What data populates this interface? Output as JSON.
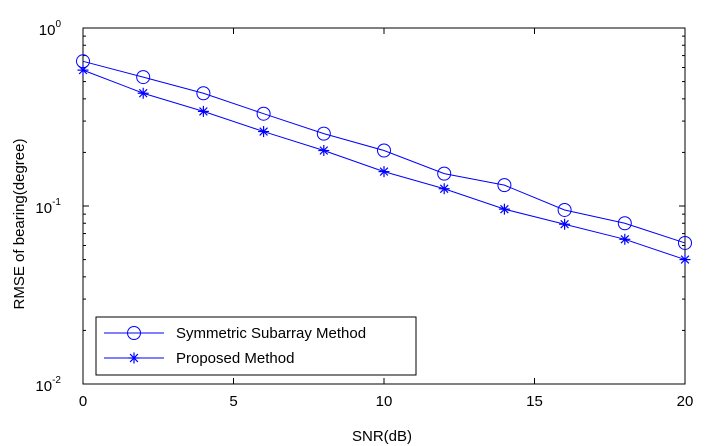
{
  "chart_data": {
    "type": "line",
    "title": "",
    "xlabel": "SNR(dB)",
    "ylabel": "RMSE of bearing(degree)",
    "yscale": "log",
    "xlim": [
      0,
      20
    ],
    "ylim": [
      0.01,
      1
    ],
    "xticks": [
      0,
      5,
      10,
      15,
      20
    ],
    "yticks": [
      {
        "value": 0.01,
        "base": "10",
        "exp": "-2"
      },
      {
        "value": 0.1,
        "base": "10",
        "exp": "-1"
      },
      {
        "value": 1,
        "base": "10",
        "exp": "0"
      }
    ],
    "grid": false,
    "legend_position": "bottom-left",
    "series": [
      {
        "name": "Symmetric Subarray Method",
        "marker": "circle",
        "color": "#0000ff",
        "x": [
          0,
          2,
          4,
          6,
          8,
          10,
          12,
          14,
          16,
          18,
          20
        ],
        "y": [
          0.65,
          0.53,
          0.43,
          0.33,
          0.255,
          0.205,
          0.152,
          0.131,
          0.095,
          0.08,
          0.062
        ]
      },
      {
        "name": "Proposed Method",
        "marker": "asterisk",
        "color": "#0000ff",
        "x": [
          0,
          2,
          4,
          6,
          8,
          10,
          12,
          14,
          16,
          18,
          20
        ],
        "y": [
          0.58,
          0.43,
          0.34,
          0.262,
          0.205,
          0.156,
          0.125,
          0.096,
          0.079,
          0.065,
          0.05
        ]
      }
    ]
  }
}
